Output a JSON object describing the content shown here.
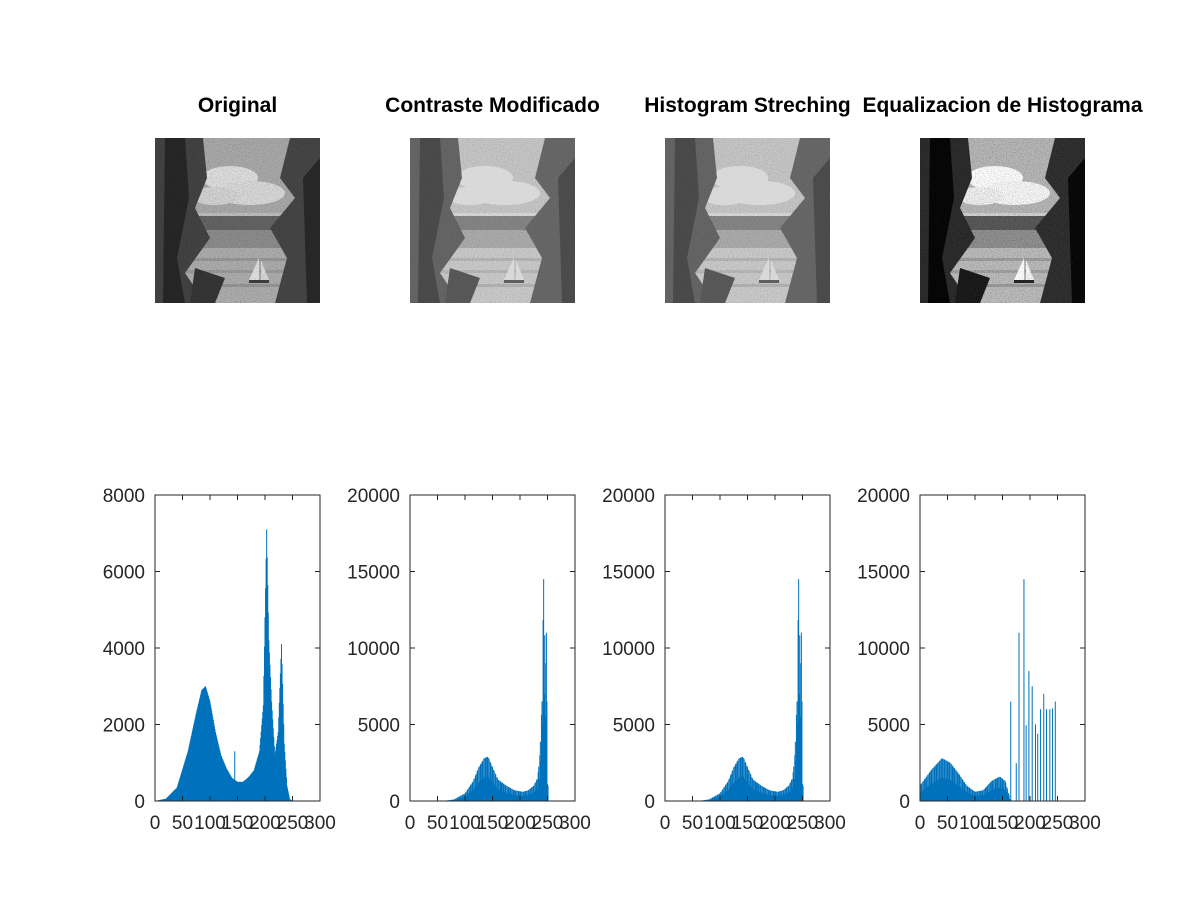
{
  "figure": {
    "background": "#ffffff",
    "series_color": "#0072bd"
  },
  "images": [
    {
      "title": "Original",
      "tone": "normal"
    },
    {
      "title": "Contraste Modificado",
      "tone": "bright"
    },
    {
      "title": "Histogram Streching",
      "tone": "bright"
    },
    {
      "title": "Equalizacion de Histograma",
      "tone": "equalized"
    }
  ],
  "chart_data": [
    {
      "type": "bar",
      "title": "",
      "xlabel": "",
      "ylabel": "",
      "xlim": [
        0,
        300
      ],
      "ylim": [
        0,
        8000
      ],
      "xticks": [
        "0",
        "50",
        "100",
        "150",
        "200",
        "250",
        "300"
      ],
      "yticks": [
        "0",
        "2000",
        "4000",
        "6000",
        "8000"
      ],
      "grid": false,
      "profile": [
        [
          0,
          0
        ],
        [
          20,
          60
        ],
        [
          40,
          350
        ],
        [
          60,
          1300
        ],
        [
          75,
          2300
        ],
        [
          85,
          2900
        ],
        [
          92,
          3000
        ],
        [
          100,
          2600
        ],
        [
          110,
          1800
        ],
        [
          120,
          1200
        ],
        [
          130,
          850
        ],
        [
          140,
          600
        ],
        [
          150,
          500
        ],
        [
          160,
          500
        ],
        [
          170,
          620
        ],
        [
          180,
          800
        ],
        [
          190,
          1300
        ],
        [
          197,
          2500
        ],
        [
          203,
          7100
        ],
        [
          207,
          4200
        ],
        [
          212,
          2600
        ],
        [
          218,
          1200
        ],
        [
          224,
          1800
        ],
        [
          230,
          4100
        ],
        [
          235,
          1500
        ],
        [
          240,
          400
        ],
        [
          245,
          50
        ],
        [
          250,
          0
        ],
        [
          255,
          0
        ]
      ],
      "peaks": [
        [
          92,
          3000
        ],
        [
          203,
          7100
        ],
        [
          230,
          4100
        ],
        [
          209,
          2900
        ],
        [
          145,
          1300
        ]
      ]
    },
    {
      "type": "bar",
      "title": "",
      "xlabel": "",
      "ylabel": "",
      "xlim": [
        0,
        300
      ],
      "ylim": [
        0,
        20000
      ],
      "xticks": [
        "0",
        "50",
        "100",
        "150",
        "200",
        "250",
        "300"
      ],
      "yticks": [
        "0",
        "5000",
        "10000",
        "15000",
        "20000"
      ],
      "grid": false,
      "profile": [
        [
          0,
          0
        ],
        [
          60,
          0
        ],
        [
          80,
          100
        ],
        [
          100,
          500
        ],
        [
          115,
          1300
        ],
        [
          125,
          2200
        ],
        [
          135,
          2800
        ],
        [
          142,
          2900
        ],
        [
          150,
          2200
        ],
        [
          160,
          1400
        ],
        [
          175,
          1000
        ],
        [
          190,
          700
        ],
        [
          205,
          600
        ],
        [
          215,
          700
        ],
        [
          225,
          1000
        ],
        [
          232,
          1500
        ],
        [
          236,
          3000
        ],
        [
          240,
          6500
        ],
        [
          243,
          14500
        ],
        [
          246,
          9000
        ],
        [
          248,
          11000
        ],
        [
          250,
          2000
        ],
        [
          252,
          0
        ],
        [
          255,
          0
        ]
      ],
      "peaks": [
        [
          243,
          14500
        ],
        [
          248,
          11000
        ],
        [
          240,
          6500
        ],
        [
          142,
          2900
        ],
        [
          166,
          2200
        ]
      ]
    },
    {
      "type": "bar",
      "title": "",
      "xlabel": "",
      "ylabel": "",
      "xlim": [
        0,
        300
      ],
      "ylim": [
        0,
        20000
      ],
      "xticks": [
        "0",
        "50",
        "100",
        "150",
        "200",
        "250",
        "300"
      ],
      "yticks": [
        "0",
        "5000",
        "10000",
        "15000",
        "20000"
      ],
      "grid": false,
      "profile": [
        [
          0,
          0
        ],
        [
          60,
          0
        ],
        [
          80,
          100
        ],
        [
          100,
          500
        ],
        [
          115,
          1300
        ],
        [
          125,
          2200
        ],
        [
          135,
          2800
        ],
        [
          142,
          2900
        ],
        [
          150,
          2200
        ],
        [
          160,
          1400
        ],
        [
          175,
          1000
        ],
        [
          190,
          700
        ],
        [
          205,
          600
        ],
        [
          215,
          700
        ],
        [
          225,
          1000
        ],
        [
          232,
          1500
        ],
        [
          236,
          3000
        ],
        [
          240,
          6500
        ],
        [
          243,
          14500
        ],
        [
          246,
          9000
        ],
        [
          248,
          11000
        ],
        [
          250,
          2000
        ],
        [
          252,
          0
        ],
        [
          255,
          0
        ]
      ],
      "peaks": [
        [
          243,
          14500
        ],
        [
          248,
          11000
        ],
        [
          240,
          6500
        ],
        [
          142,
          2900
        ],
        [
          166,
          2200
        ]
      ]
    },
    {
      "type": "bar",
      "title": "",
      "xlabel": "",
      "ylabel": "",
      "xlim": [
        0,
        300
      ],
      "ylim": [
        0,
        20000
      ],
      "xticks": [
        "0",
        "50",
        "100",
        "150",
        "200",
        "250",
        "300"
      ],
      "yticks": [
        "0",
        "5000",
        "10000",
        "15000",
        "20000"
      ],
      "grid": false,
      "profile": [
        [
          0,
          1000
        ],
        [
          20,
          2000
        ],
        [
          40,
          2800
        ],
        [
          55,
          2500
        ],
        [
          70,
          1800
        ],
        [
          85,
          1000
        ],
        [
          100,
          600
        ],
        [
          115,
          700
        ],
        [
          130,
          1300
        ],
        [
          145,
          1600
        ],
        [
          155,
          1300
        ],
        [
          165,
          0
        ],
        [
          255,
          0
        ]
      ],
      "peaks": [
        [
          165,
          6500
        ],
        [
          175,
          4500
        ],
        [
          180,
          11000
        ],
        [
          189,
          14500
        ],
        [
          193,
          9000
        ],
        [
          198,
          8500
        ],
        [
          204,
          7500
        ],
        [
          210,
          5000
        ],
        [
          214,
          8000
        ],
        [
          219,
          6000
        ],
        [
          225,
          7000
        ],
        [
          230,
          6000
        ],
        [
          236,
          6000
        ],
        [
          241,
          11000
        ],
        [
          246,
          6500
        ]
      ]
    }
  ]
}
